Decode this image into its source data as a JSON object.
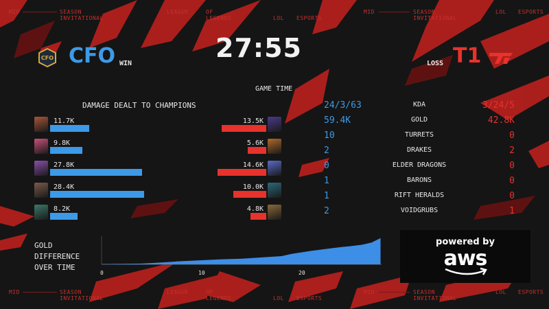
{
  "header_ticks": {
    "mid": "MID",
    "season": "SEASON",
    "invitational": "INVITATIONAL",
    "league": "LEAGUE",
    "of": "OF",
    "legends": "LEGENDS",
    "lol": "LOL",
    "esports": "ESPORTS"
  },
  "timer": "27:55",
  "game_time_label": "GAME TIME",
  "blue_team": {
    "name": "CFO",
    "result": "WIN",
    "logo_text": "CFO",
    "color": "#3d9ae8"
  },
  "red_team": {
    "name": "T1",
    "result": "LOSS",
    "logo_text": "T1",
    "color": "#e8322c"
  },
  "damage_title": "DAMAGE DEALT TO CHAMPIONS",
  "damage": {
    "max": 30000,
    "blue": [
      {
        "label": "11.7K",
        "value": 11700,
        "portrait": "#a8553a"
      },
      {
        "label": "9.8K",
        "value": 9800,
        "portrait": "#c9507a"
      },
      {
        "label": "27.8K",
        "value": 27800,
        "portrait": "#8a4fa8"
      },
      {
        "label": "28.4K",
        "value": 28400,
        "portrait": "#7a5a4a"
      },
      {
        "label": "8.2K",
        "value": 8200,
        "portrait": "#3a7a6a"
      }
    ],
    "red": [
      {
        "label": "13.5K",
        "value": 13500,
        "portrait": "#4a3a8a"
      },
      {
        "label": "5.6K",
        "value": 5600,
        "portrait": "#b06a2a"
      },
      {
        "label": "14.6K",
        "value": 14600,
        "portrait": "#5a6ac8"
      },
      {
        "label": "10.0K",
        "value": 10000,
        "portrait": "#2a6a7a"
      },
      {
        "label": "4.8K",
        "value": 4800,
        "portrait": "#8a6a3a"
      }
    ]
  },
  "stats": [
    {
      "label": "KDA",
      "blue": "24/3/63",
      "red": "3/24/5"
    },
    {
      "label": "GOLD",
      "blue": "59.4K",
      "red": "42.8K"
    },
    {
      "label": "TURRETS",
      "blue": "10",
      "red": "0"
    },
    {
      "label": "DRAKES",
      "blue": "2",
      "red": "2"
    },
    {
      "label": "ELDER DRAGONS",
      "blue": "0",
      "red": "0"
    },
    {
      "label": "BARONS",
      "blue": "1",
      "red": "0"
    },
    {
      "label": "RIFT HERALDS",
      "blue": "1",
      "red": "0"
    },
    {
      "label": "VOIDGRUBS",
      "blue": "2",
      "red": "1"
    }
  ],
  "gold_chart": {
    "title_lines": [
      "GOLD",
      "DIFFERENCE",
      "OVER TIME"
    ],
    "x_ticks": [
      "0",
      "10",
      "20"
    ],
    "chart_data": {
      "type": "area",
      "x": [
        0,
        2,
        4,
        6,
        8,
        10,
        12,
        14,
        16,
        18,
        19,
        20,
        21,
        22,
        23,
        24,
        25,
        26,
        27,
        27.9
      ],
      "values": [
        0.2,
        0.3,
        0.5,
        1.2,
        2.0,
        2.6,
        3.2,
        3.6,
        4.4,
        5.2,
        6.6,
        7.6,
        8.6,
        9.4,
        10.2,
        11.0,
        11.6,
        12.4,
        13.8,
        16.6
      ],
      "xlim": [
        0,
        28
      ],
      "color": "#3d8ee6"
    }
  },
  "sponsor": {
    "line1": "powered by",
    "line2": "aws"
  }
}
